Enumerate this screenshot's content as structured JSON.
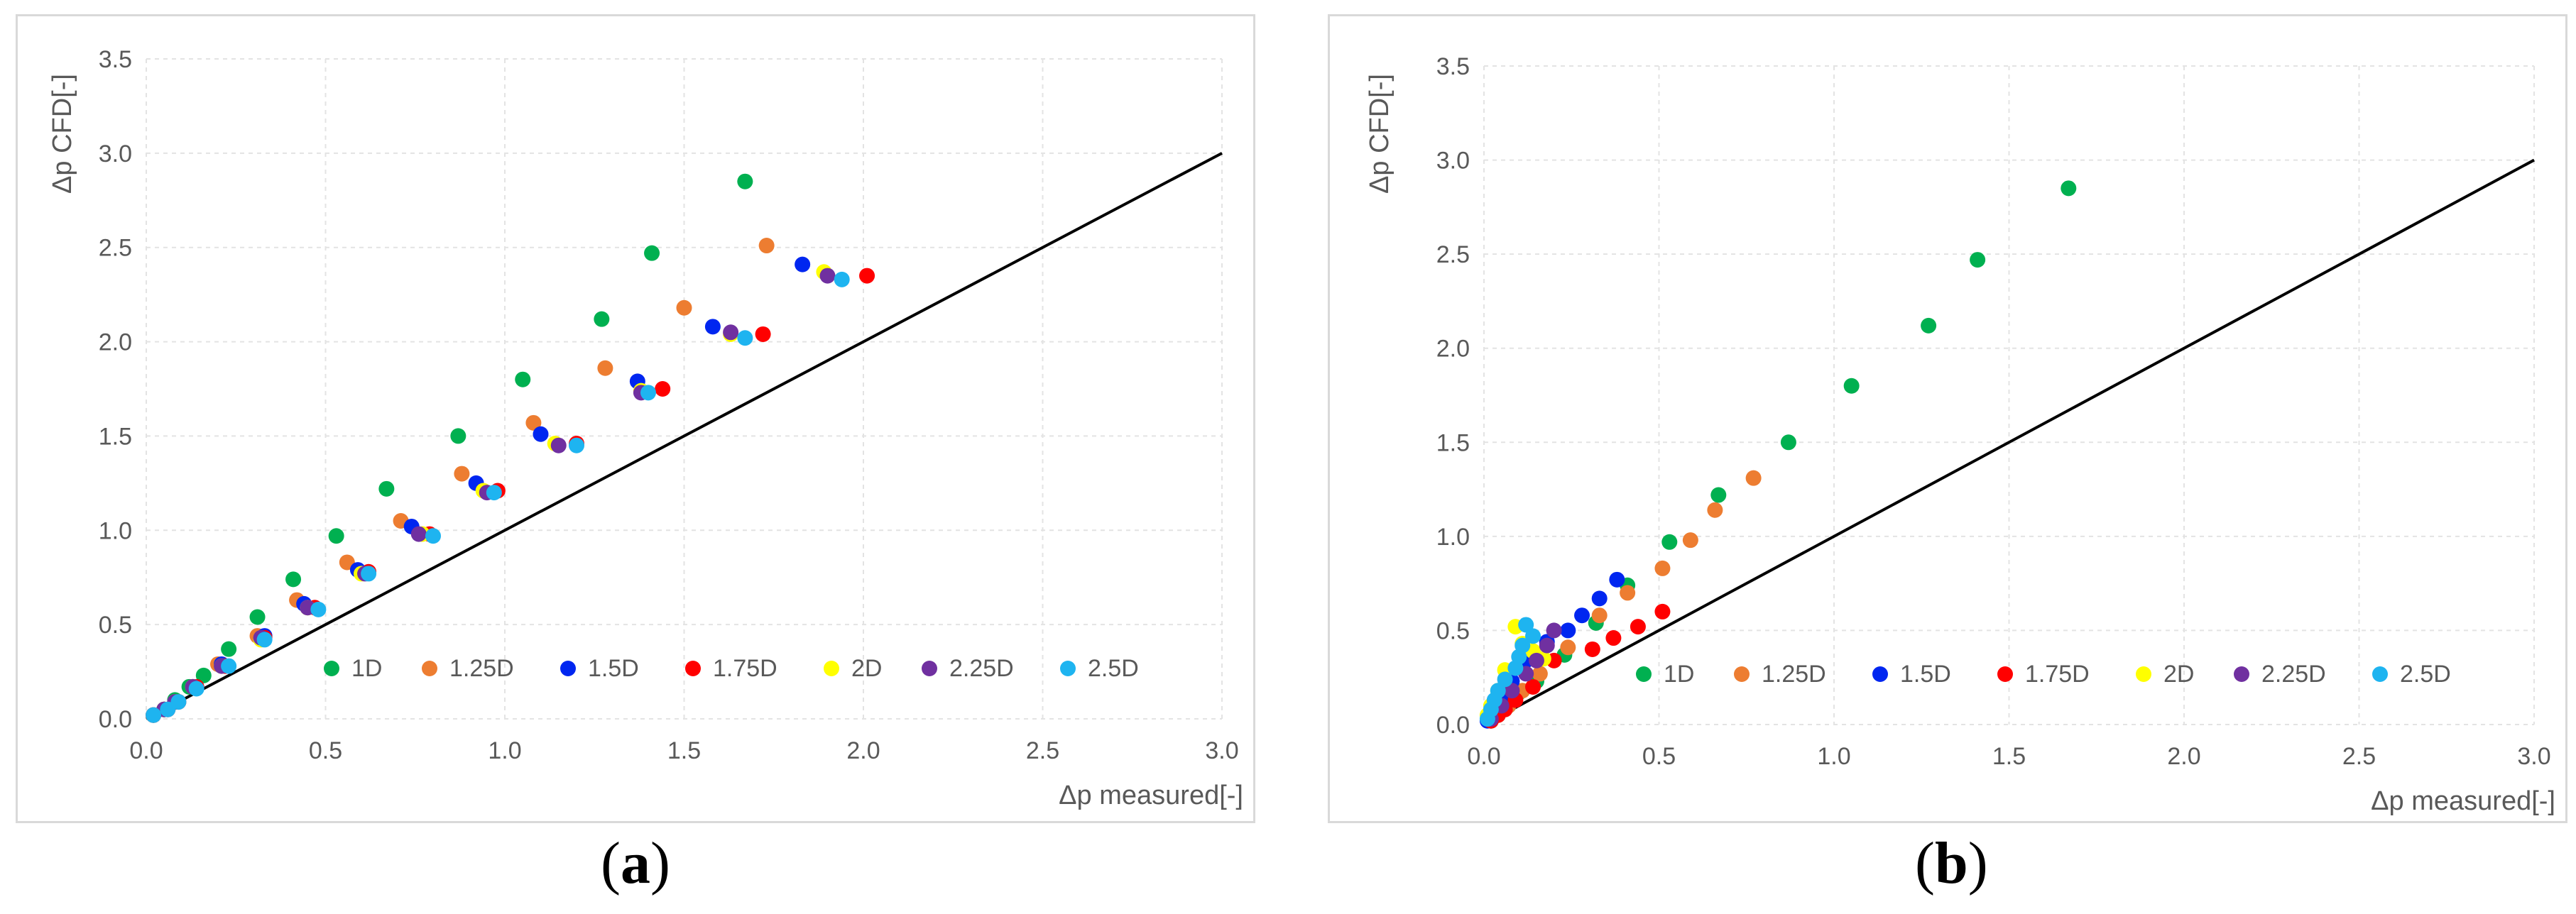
{
  "chart_data": [
    {
      "id": "a",
      "type": "scatter",
      "panel_label": "(a)",
      "panel_letter": "a",
      "xlabel": "Δp measured[-]",
      "ylabel": "Δp CFD[-]",
      "xlim": [
        0,
        3.0
      ],
      "ylim": [
        0,
        3.5
      ],
      "x_ticks": [
        "0.0",
        "0.5",
        "1.0",
        "1.5",
        "2.0",
        "2.5",
        "3.0"
      ],
      "y_ticks": [
        "0.0",
        "0.5",
        "1.0",
        "1.5",
        "2.0",
        "2.5",
        "3.0",
        "3.5"
      ],
      "reference_line": {
        "label": "y = x",
        "x": [
          0,
          3.0
        ],
        "y": [
          0,
          3.0
        ],
        "color": "#000000"
      },
      "legend_position": "lower-center",
      "series": [
        {
          "name": "1D",
          "color": "#00B050",
          "x": [
            0.02,
            0.05,
            0.08,
            0.12,
            0.16,
            0.23,
            0.31,
            0.41,
            0.53,
            0.67,
            0.87,
            1.05,
            1.27,
            1.41,
            1.67
          ],
          "y": [
            0.02,
            0.05,
            0.1,
            0.17,
            0.23,
            0.37,
            0.54,
            0.74,
            0.97,
            1.22,
            1.5,
            1.8,
            2.12,
            2.47,
            2.85
          ]
        },
        {
          "name": "1.25D",
          "color": "#ED7D31",
          "x": [
            0.02,
            0.05,
            0.08,
            0.13,
            0.2,
            0.31,
            0.42,
            0.56,
            0.71,
            0.88,
            1.08,
            1.28,
            1.5,
            1.73
          ],
          "y": [
            0.02,
            0.05,
            0.09,
            0.17,
            0.29,
            0.44,
            0.63,
            0.83,
            1.05,
            1.3,
            1.57,
            1.86,
            2.18,
            2.51
          ]
        },
        {
          "name": "1.5D",
          "color": "#0026F0",
          "x": [
            0.02,
            0.05,
            0.08,
            0.13,
            0.21,
            0.33,
            0.44,
            0.59,
            0.74,
            0.92,
            1.1,
            1.37,
            1.58,
            1.83
          ],
          "y": [
            0.02,
            0.05,
            0.09,
            0.17,
            0.29,
            0.44,
            0.61,
            0.79,
            1.02,
            1.25,
            1.51,
            1.79,
            2.08,
            2.41
          ]
        },
        {
          "name": "1.75D",
          "color": "#FF0000",
          "x": [
            0.02,
            0.06,
            0.09,
            0.14,
            0.22,
            0.33,
            0.47,
            0.62,
            0.79,
            0.98,
            1.2,
            1.44,
            1.72,
            2.01
          ],
          "y": [
            0.02,
            0.05,
            0.09,
            0.17,
            0.28,
            0.43,
            0.59,
            0.78,
            0.98,
            1.21,
            1.46,
            1.75,
            2.04,
            2.35
          ]
        },
        {
          "name": "2D",
          "color": "#FFFF00",
          "x": [
            0.02,
            0.05,
            0.08,
            0.13,
            0.21,
            0.32,
            0.45,
            0.6,
            0.77,
            0.94,
            1.14,
            1.38,
            1.63,
            1.89
          ],
          "y": [
            0.02,
            0.05,
            0.09,
            0.17,
            0.28,
            0.42,
            0.59,
            0.77,
            0.98,
            1.21,
            1.46,
            1.74,
            2.04,
            2.37
          ]
        },
        {
          "name": "2.25D",
          "color": "#7030A0",
          "x": [
            0.02,
            0.05,
            0.08,
            0.13,
            0.21,
            0.32,
            0.45,
            0.61,
            0.76,
            0.95,
            1.15,
            1.38,
            1.63,
            1.9
          ],
          "y": [
            0.02,
            0.05,
            0.09,
            0.17,
            0.28,
            0.43,
            0.59,
            0.77,
            0.98,
            1.2,
            1.45,
            1.73,
            2.05,
            2.35
          ]
        },
        {
          "name": "2.5D",
          "color": "#1EB4F0",
          "x": [
            0.02,
            0.06,
            0.09,
            0.14,
            0.23,
            0.33,
            0.48,
            0.62,
            0.8,
            0.97,
            1.2,
            1.4,
            1.67,
            1.94
          ],
          "y": [
            0.02,
            0.05,
            0.09,
            0.16,
            0.28,
            0.42,
            0.58,
            0.77,
            0.97,
            1.2,
            1.45,
            1.73,
            2.02,
            2.33
          ]
        }
      ]
    },
    {
      "id": "b",
      "type": "scatter",
      "panel_label": "(b)",
      "panel_letter": "b",
      "xlabel": "Δp measured[-]",
      "ylabel": "Δp CFD[-]",
      "xlim": [
        0,
        3.0
      ],
      "ylim": [
        0,
        3.5
      ],
      "x_ticks": [
        "0.0",
        "0.5",
        "1.0",
        "1.5",
        "2.0",
        "2.5",
        "3.0"
      ],
      "y_ticks": [
        "0.0",
        "0.5",
        "1.0",
        "1.5",
        "2.0",
        "2.5",
        "3.0",
        "3.5"
      ],
      "reference_line": {
        "label": "y = x",
        "x": [
          0,
          3.0
        ],
        "y": [
          0,
          3.0
        ],
        "color": "#000000"
      },
      "legend_position": "lower-center",
      "series": [
        {
          "name": "1D",
          "color": "#00B050",
          "x": [
            0.02,
            0.04,
            0.07,
            0.1,
            0.15,
            0.23,
            0.32,
            0.41,
            0.53,
            0.67,
            0.87,
            1.05,
            1.27,
            1.41,
            1.67
          ],
          "y": [
            0.02,
            0.05,
            0.1,
            0.17,
            0.23,
            0.37,
            0.54,
            0.74,
            0.97,
            1.22,
            1.5,
            1.8,
            2.12,
            2.47,
            2.85
          ]
        },
        {
          "name": "1.25D",
          "color": "#ED7D31",
          "x": [
            0.02,
            0.04,
            0.07,
            0.11,
            0.16,
            0.24,
            0.33,
            0.41,
            0.51,
            0.59,
            0.66,
            0.77
          ],
          "y": [
            0.02,
            0.05,
            0.1,
            0.18,
            0.27,
            0.41,
            0.58,
            0.7,
            0.83,
            0.98,
            1.14,
            1.31
          ]
        },
        {
          "name": "1.5D",
          "color": "#0026F0",
          "x": [
            0.01,
            0.03,
            0.05,
            0.08,
            0.12,
            0.18,
            0.24,
            0.28,
            0.33,
            0.38
          ],
          "y": [
            0.02,
            0.07,
            0.15,
            0.23,
            0.34,
            0.44,
            0.5,
            0.58,
            0.67,
            0.77
          ]
        },
        {
          "name": "1.75D",
          "color": "#FF0000",
          "x": [
            0.02,
            0.04,
            0.06,
            0.09,
            0.14,
            0.2,
            0.31,
            0.37,
            0.44,
            0.51
          ],
          "y": [
            0.02,
            0.05,
            0.08,
            0.13,
            0.2,
            0.34,
            0.4,
            0.46,
            0.52,
            0.6
          ]
        },
        {
          "name": "2D",
          "color": "#FFFF00",
          "x": [
            0.01,
            0.02,
            0.04,
            0.06,
            0.09,
            0.11,
            0.14,
            0.17
          ],
          "y": [
            0.05,
            0.1,
            0.18,
            0.29,
            0.52,
            0.43,
            0.39,
            0.35
          ]
        },
        {
          "name": "2.25D",
          "color": "#7030A0",
          "x": [
            0.02,
            0.05,
            0.08,
            0.12,
            0.15,
            0.18,
            0.2
          ],
          "y": [
            0.03,
            0.1,
            0.18,
            0.27,
            0.34,
            0.42,
            0.5
          ]
        },
        {
          "name": "2.5D",
          "color": "#1EB4F0",
          "x": [
            0.01,
            0.02,
            0.03,
            0.04,
            0.06,
            0.09,
            0.1,
            0.11,
            0.12,
            0.14
          ],
          "y": [
            0.03,
            0.08,
            0.13,
            0.18,
            0.24,
            0.3,
            0.36,
            0.42,
            0.53,
            0.47
          ]
        }
      ]
    }
  ]
}
